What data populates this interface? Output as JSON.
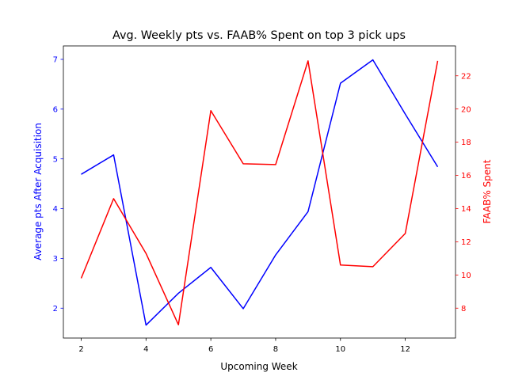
{
  "chart_data": {
    "type": "line",
    "title": "Avg. Weekly pts vs. FAAB% Spent on top 3 pick ups",
    "xlabel": "Upcoming Week",
    "xlim": [
      1.45,
      13.55
    ],
    "x_ticks": [
      2,
      4,
      6,
      8,
      10,
      12
    ],
    "x": [
      2,
      3,
      4,
      5,
      6,
      7,
      8,
      9,
      10,
      11,
      12,
      13
    ],
    "axes": {
      "left": {
        "label": "Average pts After Acquisition",
        "color": "#0000ff",
        "ylim": [
          1.4,
          7.27
        ],
        "ticks": [
          2,
          3,
          4,
          5,
          6,
          7
        ]
      },
      "right": {
        "label": "FAAB% Spent",
        "color": "#ff0000",
        "ylim": [
          6.2,
          23.8
        ],
        "ticks": [
          8,
          10,
          12,
          14,
          16,
          18,
          20,
          22
        ]
      }
    },
    "series": [
      {
        "axis": "left",
        "color": "#0000ff",
        "values": [
          4.69,
          5.08,
          1.66,
          2.3,
          2.82,
          1.99,
          3.07,
          3.94,
          6.52,
          6.99,
          5.9,
          4.84
        ]
      },
      {
        "axis": "right",
        "color": "#ff0000",
        "values": [
          9.8,
          14.6,
          11.3,
          7.0,
          19.9,
          16.7,
          16.65,
          22.9,
          10.6,
          10.5,
          12.5,
          22.9
        ]
      }
    ],
    "grid": false,
    "legend": "none"
  }
}
